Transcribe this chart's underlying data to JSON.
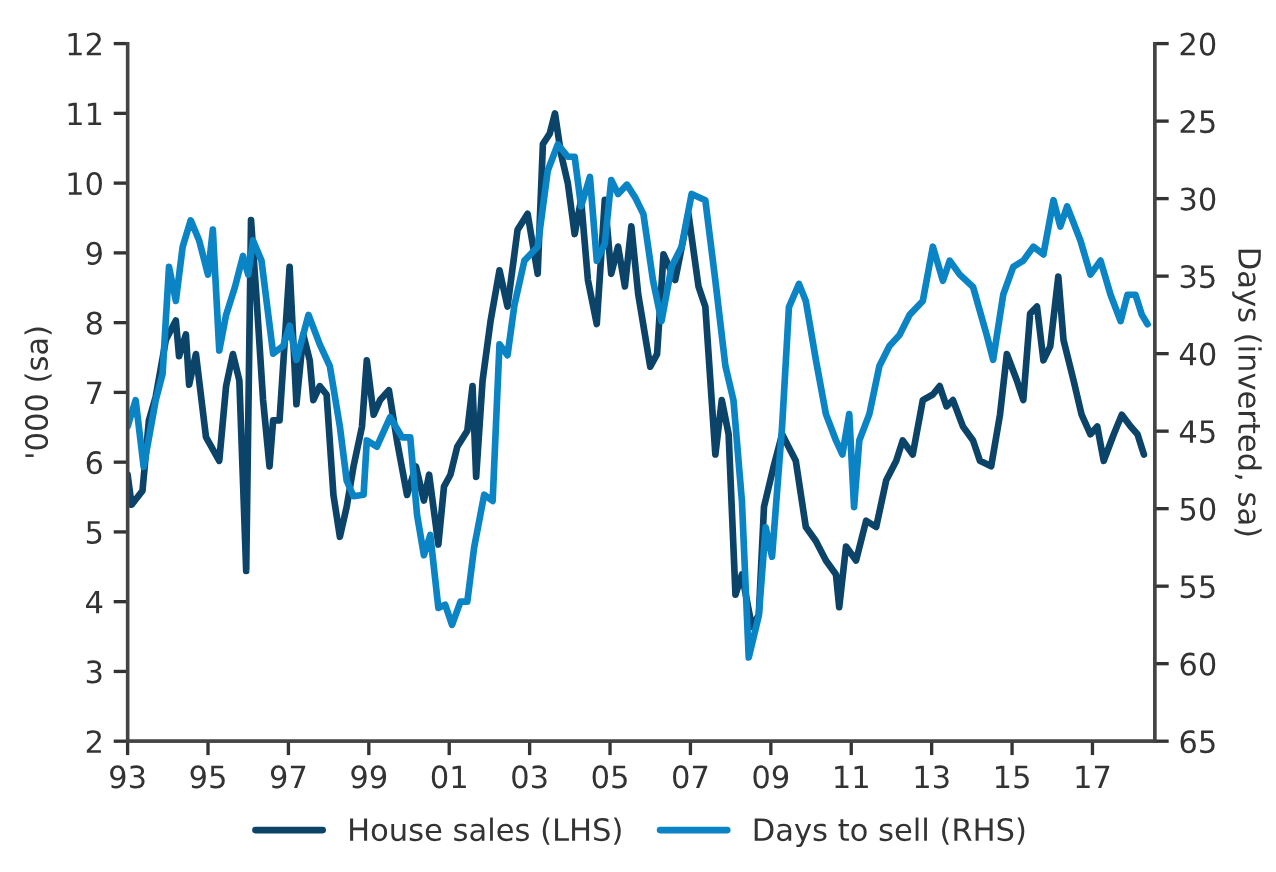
{
  "chart_data": {
    "type": "line",
    "ylabel": "'000 (sa)",
    "y2label": "Days (inverted, sa)",
    "legend": "bottom",
    "grid": false,
    "xlim": [
      1993,
      2018.55
    ],
    "xticks": [
      {
        "value": 1993,
        "label": "93"
      },
      {
        "value": 1995,
        "label": "95"
      },
      {
        "value": 1997,
        "label": "97"
      },
      {
        "value": 1999,
        "label": "99"
      },
      {
        "value": 2001,
        "label": "01"
      },
      {
        "value": 2003,
        "label": "03"
      },
      {
        "value": 2005,
        "label": "05"
      },
      {
        "value": 2007,
        "label": "07"
      },
      {
        "value": 2009,
        "label": "09"
      },
      {
        "value": 2011,
        "label": "11"
      },
      {
        "value": 2013,
        "label": "13"
      },
      {
        "value": 2015,
        "label": "15"
      },
      {
        "value": 2017,
        "label": "17"
      }
    ],
    "ylim": [
      2,
      12
    ],
    "yticks": [
      2,
      3,
      4,
      5,
      6,
      7,
      8,
      9,
      10,
      11,
      12
    ],
    "y2lim": [
      65,
      20
    ],
    "y2ticks": [
      65,
      60,
      55,
      50,
      45,
      40,
      35,
      30,
      25,
      20
    ],
    "series": [
      {
        "name": "House sales (LHS)",
        "color": "#0b4468",
        "axis": "y",
        "x": [
          1993.0,
          1993.1,
          1993.37,
          1993.53,
          1993.7,
          1993.95,
          1994.2,
          1994.28,
          1994.45,
          1994.53,
          1994.7,
          1994.95,
          1995.28,
          1995.45,
          1995.62,
          1995.78,
          1995.95,
          1996.07,
          1996.2,
          1996.37,
          1996.53,
          1996.62,
          1996.78,
          1997.03,
          1997.2,
          1997.37,
          1997.53,
          1997.62,
          1997.78,
          1997.95,
          1998.12,
          1998.28,
          1998.45,
          1998.62,
          1998.83,
          1998.95,
          1999.12,
          1999.28,
          1999.5,
          1999.7,
          1999.95,
          2000.17,
          2000.37,
          2000.5,
          2000.73,
          2000.87,
          2001.03,
          2001.2,
          2001.45,
          2001.58,
          2001.67,
          2001.83,
          2002.03,
          2002.25,
          2002.45,
          2002.7,
          2002.95,
          2003.2,
          2003.33,
          2003.5,
          2003.63,
          2003.78,
          2003.95,
          2004.12,
          2004.28,
          2004.45,
          2004.67,
          2004.87,
          2005.03,
          2005.2,
          2005.37,
          2005.53,
          2005.7,
          2006.0,
          2006.17,
          2006.33,
          2006.62,
          2006.95,
          2007.2,
          2007.37,
          2007.62,
          2007.78,
          2007.95,
          2008.12,
          2008.28,
          2008.53,
          2008.7,
          2008.83,
          2009.07,
          2009.28,
          2009.62,
          2009.87,
          2010.12,
          2010.37,
          2010.62,
          2010.7,
          2010.87,
          2011.12,
          2011.37,
          2011.62,
          2011.87,
          2012.12,
          2012.28,
          2012.53,
          2012.78,
          2013.03,
          2013.2,
          2013.37,
          2013.53,
          2013.78,
          2014.03,
          2014.2,
          2014.48,
          2014.7,
          2014.87,
          2015.12,
          2015.28,
          2015.45,
          2015.62,
          2015.78,
          2015.95,
          2016.15,
          2016.28,
          2016.53,
          2016.73,
          2016.95,
          2017.12,
          2017.28,
          2017.53,
          2017.73,
          2017.95,
          2018.12,
          2018.28
        ],
        "values": [
          5.82,
          5.39,
          5.59,
          6.6,
          6.94,
          7.75,
          8.03,
          7.52,
          7.83,
          7.11,
          7.55,
          6.36,
          6.02,
          7.09,
          7.55,
          7.17,
          4.44,
          9.47,
          8.41,
          6.89,
          5.94,
          6.6,
          6.6,
          8.8,
          6.83,
          7.83,
          7.46,
          6.89,
          7.09,
          6.97,
          5.53,
          4.93,
          5.36,
          5.94,
          6.51,
          7.46,
          6.68,
          6.89,
          7.03,
          6.31,
          5.53,
          5.94,
          5.45,
          5.82,
          4.82,
          5.65,
          5.82,
          6.22,
          6.45,
          7.09,
          5.79,
          7.17,
          8.03,
          8.75,
          8.23,
          9.33,
          9.56,
          8.7,
          10.56,
          10.71,
          11.0,
          10.42,
          10.0,
          9.27,
          9.76,
          8.61,
          7.98,
          9.76,
          8.7,
          9.09,
          8.52,
          9.38,
          8.41,
          7.37,
          7.55,
          8.98,
          8.61,
          9.56,
          8.52,
          8.23,
          6.11,
          6.89,
          6.4,
          4.1,
          4.39,
          3.64,
          3.81,
          5.36,
          5.94,
          6.4,
          6.02,
          5.07,
          4.87,
          4.59,
          4.39,
          3.92,
          4.79,
          4.59,
          5.16,
          5.07,
          5.74,
          6.02,
          6.31,
          6.11,
          6.89,
          6.97,
          7.09,
          6.8,
          6.89,
          6.51,
          6.31,
          6.02,
          5.94,
          6.68,
          7.55,
          7.17,
          6.89,
          8.13,
          8.23,
          7.46,
          7.66,
          8.66,
          7.75,
          7.17,
          6.68,
          6.4,
          6.51,
          6.02,
          6.4,
          6.68,
          6.51,
          6.4,
          6.11
        ]
      },
      {
        "name": "Days to sell (RHS)",
        "color": "#0a84c4",
        "axis": "y2",
        "x": [
          1993.0,
          1993.2,
          1993.4,
          1993.7,
          1993.87,
          1994.03,
          1994.2,
          1994.37,
          1994.57,
          1994.78,
          1995.0,
          1995.12,
          1995.28,
          1995.45,
          1995.67,
          1995.87,
          1996.0,
          1996.12,
          1996.33,
          1996.62,
          1996.87,
          1997.03,
          1997.2,
          1997.5,
          1997.78,
          1998.03,
          1998.28,
          1998.45,
          1998.62,
          1998.87,
          1998.95,
          1999.2,
          1999.53,
          1999.83,
          2000.03,
          2000.2,
          2000.37,
          2000.53,
          2000.73,
          2000.9,
          2001.07,
          2001.28,
          2001.45,
          2001.62,
          2001.87,
          2002.08,
          2002.25,
          2002.45,
          2002.62,
          2002.87,
          2003.2,
          2003.45,
          2003.7,
          2003.95,
          2004.12,
          2004.28,
          2004.5,
          2004.67,
          2004.87,
          2005.03,
          2005.2,
          2005.42,
          2005.62,
          2005.83,
          2006.07,
          2006.28,
          2006.53,
          2006.78,
          2007.03,
          2007.37,
          2007.62,
          2007.87,
          2008.07,
          2008.28,
          2008.45,
          2008.7,
          2008.87,
          2009.03,
          2009.28,
          2009.45,
          2009.7,
          2009.87,
          2010.12,
          2010.37,
          2010.62,
          2010.78,
          2010.95,
          2011.07,
          2011.2,
          2011.45,
          2011.7,
          2011.95,
          2012.2,
          2012.45,
          2012.78,
          2013.03,
          2013.28,
          2013.45,
          2013.7,
          2014.03,
          2014.37,
          2014.53,
          2014.78,
          2015.03,
          2015.28,
          2015.53,
          2015.78,
          2016.03,
          2016.2,
          2016.37,
          2016.7,
          2016.95,
          2017.2,
          2017.45,
          2017.7,
          2017.87,
          2018.07,
          2018.23,
          2018.37
        ],
        "values": [
          44.7,
          43.0,
          47.3,
          43.0,
          41.3,
          34.4,
          36.6,
          33.1,
          31.4,
          32.7,
          34.9,
          32.0,
          39.8,
          37.5,
          35.7,
          33.7,
          34.9,
          32.7,
          34.0,
          40.0,
          39.5,
          38.2,
          40.4,
          37.5,
          39.4,
          40.8,
          44.7,
          48.2,
          49.2,
          49.1,
          45.6,
          46.0,
          44.1,
          45.4,
          45.4,
          50.4,
          53.0,
          51.7,
          56.4,
          56.2,
          57.5,
          56.0,
          56.0,
          52.5,
          49.1,
          49.5,
          39.4,
          40.1,
          36.9,
          34.0,
          33.1,
          28.2,
          26.5,
          27.3,
          27.3,
          30.5,
          28.6,
          34.0,
          32.9,
          28.8,
          29.7,
          29.1,
          29.9,
          31.0,
          35.3,
          37.9,
          34.4,
          33.1,
          29.7,
          30.1,
          35.3,
          40.8,
          43.0,
          49.5,
          59.6,
          56.9,
          51.2,
          53.1,
          44.7,
          37.0,
          35.5,
          36.6,
          40.4,
          43.9,
          45.6,
          46.5,
          43.9,
          49.9,
          45.6,
          43.9,
          40.8,
          39.5,
          38.8,
          37.5,
          36.6,
          33.1,
          35.3,
          34.0,
          34.9,
          35.7,
          38.8,
          40.4,
          36.2,
          34.4,
          34.0,
          33.1,
          33.6,
          30.1,
          31.8,
          30.5,
          32.7,
          34.9,
          34.0,
          36.2,
          37.9,
          36.2,
          36.2,
          37.5,
          38.1
        ]
      }
    ]
  }
}
